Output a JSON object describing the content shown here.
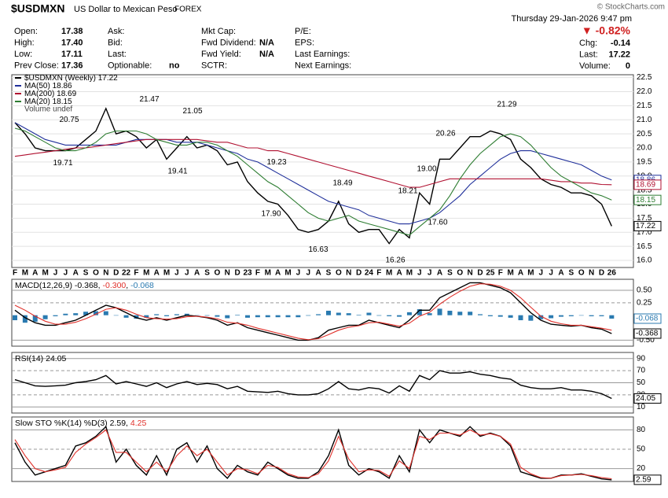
{
  "header": {
    "symbol": "$USDMXN",
    "description": "US Dollar to Mexican Peso",
    "exchange": "FOREX",
    "date": "Thursday  29-Jan-2026  9:47 pm",
    "credit": "© StockCharts.com",
    "change_pct": "▼ -0.82%",
    "columns": [
      [
        {
          "label": "Open:",
          "value": "17.38"
        },
        {
          "label": "High:",
          "value": "17.40"
        },
        {
          "label": "Low:",
          "value": "17.11"
        },
        {
          "label": "Prev Close:",
          "value": "17.36"
        }
      ],
      [
        {
          "label": "Ask:"
        },
        {
          "label": "Bid:"
        },
        {
          "label": "Last:"
        },
        {
          "label": "Optionable:",
          "value": "no"
        }
      ],
      [
        {
          "label": "Mkt Cap:"
        },
        {
          "label": "Fwd Dividend:",
          "value": "N/A"
        },
        {
          "label": "Fwd Yield:",
          "value": "N/A"
        },
        {
          "label": "SCTR:"
        }
      ],
      [
        {
          "label": "P/E:"
        },
        {
          "label": "EPS:"
        },
        {
          "label": "Last Earnings:"
        },
        {
          "label": "Next Earnings:"
        }
      ]
    ],
    "right": [
      {
        "label": "Chg:",
        "value": "-0.14"
      },
      {
        "label": "Last:",
        "value": "17.22"
      },
      {
        "label": "Volume:",
        "value": "0"
      }
    ]
  },
  "categories": [
    "F",
    "M",
    "A",
    "M",
    "J",
    "J",
    "A",
    "S",
    "O",
    "N",
    "D",
    "22",
    "F",
    "M",
    "A",
    "M",
    "J",
    "J",
    "A",
    "S",
    "O",
    "N",
    "D",
    "23",
    "F",
    "M",
    "A",
    "M",
    "J",
    "J",
    "A",
    "S",
    "O",
    "N",
    "D",
    "24",
    "F",
    "M",
    "A",
    "M",
    "J",
    "J",
    "A",
    "S",
    "O",
    "N",
    "D",
    "25",
    "F",
    "M",
    "A",
    "M",
    "J",
    "J",
    "A",
    "S",
    "O",
    "N",
    "D",
    "26"
  ],
  "chart_data": [
    {
      "type": "line",
      "note": "Volume undef",
      "grid": true,
      "ylim": [
        15.75,
        22.6
      ],
      "yticks": [
        {
          "value": 16,
          "label": "16.0"
        },
        16.5,
        {
          "value": 17,
          "label": "17.0"
        },
        17.5,
        {
          "value": 18,
          "label": "18.0"
        },
        18.5,
        {
          "value": 19,
          "label": "19.0"
        },
        19.5,
        {
          "value": 20,
          "label": "20.0"
        },
        20.5,
        {
          "value": 21,
          "label": "21.0"
        },
        21.5,
        {
          "value": 22,
          "label": "22.0"
        },
        22.5
      ],
      "series": [
        {
          "name": "$USDMXN (Weekly)",
          "color": "#000000",
          "last_label": "17.22",
          "box": true,
          "values": [
            20.9,
            20.5,
            20.0,
            19.9,
            19.9,
            19.9,
            20.0,
            20.3,
            20.6,
            21.4,
            20.5,
            20.6,
            20.4,
            20.0,
            20.3,
            19.6,
            20.0,
            20.4,
            20.0,
            20.1,
            19.9,
            19.4,
            19.5,
            18.8,
            18.4,
            18.1,
            18.0,
            17.6,
            17.1,
            17.0,
            17.1,
            17.4,
            18.1,
            17.3,
            17.0,
            17.1,
            17.1,
            16.6,
            17.1,
            16.8,
            18.4,
            18.0,
            19.6,
            19.6,
            20.0,
            20.4,
            20.4,
            20.6,
            20.5,
            20.3,
            19.6,
            19.3,
            18.9,
            18.7,
            18.6,
            18.4,
            18.4,
            18.3,
            18.0,
            17.22
          ]
        },
        {
          "name": "MA(50)",
          "color": "#1f2f9a",
          "last_label": "18.86",
          "box": true,
          "values": [
            20.9,
            20.7,
            20.5,
            20.3,
            20.2,
            20.1,
            20.1,
            20.1,
            20.1,
            20.1,
            20.1,
            20.2,
            20.3,
            20.3,
            20.3,
            20.3,
            20.2,
            20.2,
            20.2,
            20.1,
            20.0,
            19.9,
            19.8,
            19.6,
            19.5,
            19.3,
            19.1,
            18.9,
            18.7,
            18.5,
            18.3,
            18.1,
            18.0,
            17.9,
            17.8,
            17.6,
            17.5,
            17.4,
            17.3,
            17.3,
            17.4,
            17.5,
            17.7,
            18.0,
            18.3,
            18.7,
            19.0,
            19.3,
            19.6,
            19.8,
            19.9,
            19.9,
            19.8,
            19.7,
            19.6,
            19.5,
            19.4,
            19.2,
            19.0,
            18.86
          ]
        },
        {
          "name": "MA(200)",
          "color": "#b01030",
          "last_label": "18.69",
          "box": true,
          "values": [
            19.7,
            19.75,
            19.8,
            19.85,
            19.9,
            19.95,
            20.0,
            20.0,
            20.05,
            20.1,
            20.15,
            20.2,
            20.25,
            20.3,
            20.3,
            20.3,
            20.3,
            20.3,
            20.3,
            20.25,
            20.2,
            20.2,
            20.1,
            20.0,
            20.0,
            19.9,
            19.9,
            19.8,
            19.7,
            19.6,
            19.5,
            19.4,
            19.3,
            19.2,
            19.1,
            19.0,
            18.9,
            18.8,
            18.7,
            18.6,
            18.6,
            18.7,
            18.8,
            18.9,
            18.9,
            18.9,
            18.9,
            18.9,
            18.9,
            18.9,
            18.9,
            18.9,
            18.9,
            18.85,
            18.8,
            18.8,
            18.75,
            18.75,
            18.7,
            18.69
          ]
        },
        {
          "name": "MA(20)",
          "color": "#2e7d32",
          "last_label": "18.15",
          "box": true,
          "values": [
            20.7,
            20.6,
            20.4,
            20.2,
            20.0,
            19.9,
            19.9,
            20.0,
            20.2,
            20.5,
            20.6,
            20.6,
            20.6,
            20.5,
            20.3,
            20.2,
            20.1,
            20.1,
            20.2,
            20.2,
            20.1,
            19.9,
            19.7,
            19.4,
            19.1,
            18.8,
            18.6,
            18.3,
            18.0,
            17.7,
            17.5,
            17.4,
            17.5,
            17.6,
            17.4,
            17.3,
            17.2,
            17.1,
            17.0,
            16.9,
            17.2,
            17.5,
            17.8,
            18.3,
            18.9,
            19.4,
            19.8,
            20.1,
            20.4,
            20.5,
            20.4,
            20.1,
            19.7,
            19.3,
            19.0,
            18.8,
            18.6,
            18.4,
            18.3,
            18.15
          ]
        }
      ],
      "annotations": [
        {
          "value": 20.75,
          "label": "20.75"
        },
        {
          "value": 19.71,
          "label": "19.71"
        },
        {
          "value": 21.47,
          "label": "21.47"
        },
        {
          "value": 21.05,
          "label": "21.05"
        },
        {
          "value": 19.41,
          "label": "19.41"
        },
        {
          "value": 19.23,
          "label": "19.23"
        },
        {
          "value": 17.9,
          "label": "17.90"
        },
        {
          "value": 16.63,
          "label": "16.63"
        },
        {
          "value": 18.49,
          "label": "18.49"
        },
        {
          "value": 16.26,
          "label": "16.26"
        },
        {
          "value": 18.21,
          "label": "18.21"
        },
        {
          "value": 19,
          "label": "19.00"
        },
        {
          "value": 17.6,
          "label": "17.60"
        },
        {
          "value": 20.26,
          "label": "20.26"
        },
        {
          "value": 21.29,
          "label": "21.29"
        }
      ]
    },
    {
      "type": "line",
      "title": "MACD(12,26,9)",
      "ylim": [
        -0.62,
        0.72
      ],
      "yticks": [
        {
          "value": 0.5,
          "label": "0.50"
        },
        0.25,
        {
          "value": -0.5,
          "label": "-0.50"
        }
      ],
      "series": [
        {
          "kind": "histogram",
          "color": "#2a7ab0",
          "last_label": "-0.068",
          "box": true,
          "values": [
            -0.1,
            -0.15,
            -0.13,
            -0.08,
            -0.02,
            0.03,
            0.04,
            0.07,
            0.08,
            0.08,
            0,
            -0.05,
            -0.07,
            -0.05,
            0.02,
            -0.02,
            0.02,
            0.03,
            0,
            -0.01,
            -0.03,
            -0.06,
            0.01,
            -0.05,
            -0.04,
            -0.04,
            -0.04,
            -0.04,
            -0.04,
            -0.01,
            0.02,
            0.09,
            0.05,
            0.04,
            0.01,
            0.05,
            -0.01,
            -0.02,
            -0.03,
            0.06,
            0.12,
            0.04,
            0.13,
            0.09,
            0.07,
            0.07,
            0.02,
            -0.02,
            -0.03,
            -0.05,
            -0.1,
            -0.11,
            -0.08,
            -0.06,
            -0.03,
            -0.02,
            0,
            -0.02,
            -0.02,
            -0.068
          ]
        },
        {
          "color": "#000000",
          "last_label": "-0.368",
          "box": true,
          "values": [
            0.1,
            -0.05,
            -0.15,
            -0.2,
            -0.2,
            -0.15,
            -0.1,
            0,
            0.1,
            0.2,
            0.15,
            0.05,
            -0.05,
            -0.1,
            -0.05,
            -0.1,
            -0.05,
            0,
            -0.02,
            -0.05,
            -0.1,
            -0.2,
            -0.15,
            -0.25,
            -0.3,
            -0.35,
            -0.4,
            -0.45,
            -0.5,
            -0.5,
            -0.45,
            -0.3,
            -0.25,
            -0.2,
            -0.2,
            -0.1,
            -0.15,
            -0.2,
            -0.25,
            -0.1,
            0.1,
            0.1,
            0.35,
            0.45,
            0.55,
            0.65,
            0.65,
            0.6,
            0.55,
            0.45,
            0.25,
            0.05,
            -0.1,
            -0.18,
            -0.2,
            -0.22,
            -0.2,
            -0.25,
            -0.28,
            -0.368
          ]
        },
        {
          "color": "#e0302a",
          "last_label": "-0.300",
          "values": [
            0.2,
            0.1,
            -0.02,
            -0.12,
            -0.18,
            -0.18,
            -0.14,
            -0.07,
            0.02,
            0.12,
            0.15,
            0.1,
            0.02,
            -0.05,
            -0.07,
            -0.08,
            -0.07,
            -0.03,
            -0.02,
            -0.04,
            -0.07,
            -0.14,
            -0.16,
            -0.2,
            -0.26,
            -0.31,
            -0.36,
            -0.41,
            -0.46,
            -0.49,
            -0.47,
            -0.39,
            -0.3,
            -0.24,
            -0.21,
            -0.15,
            -0.14,
            -0.18,
            -0.22,
            -0.16,
            -0.02,
            0.06,
            0.22,
            0.36,
            0.48,
            0.58,
            0.63,
            0.62,
            0.58,
            0.5,
            0.35,
            0.16,
            -0.02,
            -0.12,
            -0.17,
            -0.2,
            -0.2,
            -0.23,
            -0.26,
            -0.3
          ]
        }
      ]
    },
    {
      "type": "line",
      "title": "RSI(14)",
      "ylim": [
        0,
        100
      ],
      "yticks": [
        90,
        70,
        50,
        30,
        10
      ],
      "series": [
        {
          "color": "#000000",
          "last_label": "24.05",
          "box": true,
          "values": [
            55,
            50,
            45,
            44,
            45,
            46,
            50,
            52,
            55,
            62,
            48,
            52,
            48,
            44,
            50,
            42,
            48,
            52,
            47,
            49,
            47,
            40,
            44,
            36,
            35,
            34,
            36,
            32,
            30,
            30,
            32,
            40,
            52,
            40,
            38,
            42,
            40,
            33,
            45,
            36,
            62,
            55,
            70,
            66,
            66,
            68,
            64,
            62,
            58,
            56,
            46,
            42,
            40,
            40,
            42,
            38,
            38,
            36,
            32,
            24.05
          ]
        }
      ]
    },
    {
      "type": "line",
      "title": "Slow STO %K(14) %D(3)",
      "ylim": [
        0,
        100
      ],
      "yticks": [
        80,
        50,
        20
      ],
      "series": [
        {
          "color": "#000000",
          "last_label": "2.59",
          "box": true,
          "values": [
            60,
            30,
            10,
            15,
            20,
            25,
            55,
            60,
            70,
            85,
            30,
            50,
            25,
            10,
            40,
            10,
            50,
            60,
            30,
            55,
            20,
            5,
            25,
            15,
            10,
            30,
            20,
            10,
            5,
            5,
            15,
            40,
            80,
            25,
            10,
            20,
            15,
            5,
            40,
            15,
            80,
            60,
            80,
            75,
            70,
            85,
            70,
            75,
            70,
            55,
            15,
            10,
            5,
            5,
            10,
            10,
            12,
            8,
            4,
            2.59
          ]
        },
        {
          "color": "#e0302a",
          "last_label": "4.25",
          "values": [
            65,
            40,
            20,
            15,
            18,
            22,
            45,
            58,
            68,
            80,
            45,
            45,
            30,
            15,
            30,
            15,
            40,
            55,
            40,
            50,
            30,
            10,
            20,
            18,
            12,
            25,
            22,
            12,
            7,
            6,
            12,
            32,
            70,
            35,
            15,
            18,
            17,
            8,
            32,
            20,
            70,
            65,
            75,
            75,
            72,
            80,
            72,
            74,
            70,
            58,
            22,
            12,
            6,
            5,
            9,
            10,
            11,
            9,
            6,
            4.25
          ]
        }
      ]
    }
  ]
}
